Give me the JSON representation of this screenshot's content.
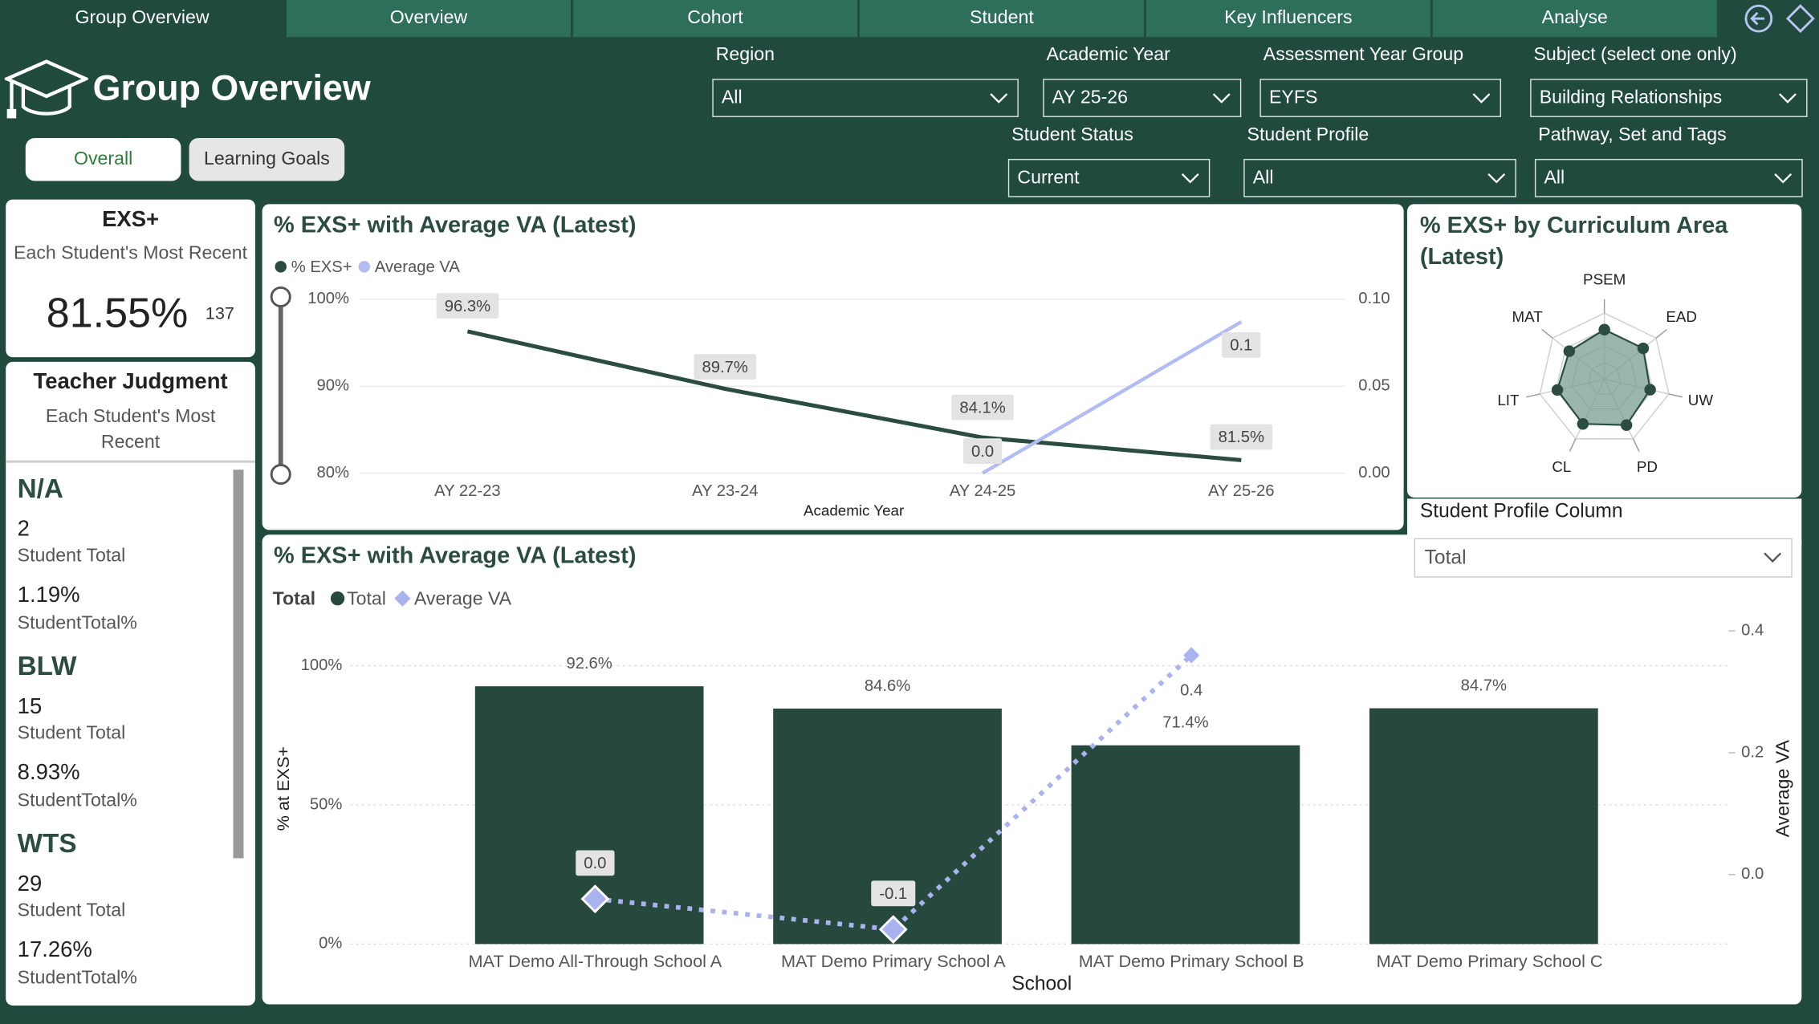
{
  "nav": {
    "tabs": [
      "Group Overview",
      "Overview",
      "Cohort",
      "Student",
      "Key Influencers",
      "Analyse"
    ]
  },
  "header": {
    "title": "Group Overview"
  },
  "toggles": [
    "Overall",
    "Learning Goals"
  ],
  "filters": [
    {
      "label": "Region",
      "value": "All"
    },
    {
      "label": "Academic Year",
      "value": "AY 25-26"
    },
    {
      "label": "Assessment Year Group",
      "value": "EYFS"
    },
    {
      "label": "Subject (select one only)",
      "value": "Building Relationships"
    },
    {
      "label": "Student Status",
      "value": "Current"
    },
    {
      "label": "Student Profile",
      "value": "All"
    },
    {
      "label": "Pathway, Set and Tags",
      "value": "All"
    }
  ],
  "exs_card": {
    "title": "EXS+",
    "subtitle": "Each Student's Most Recent",
    "value": "81.55%",
    "count": "137"
  },
  "judgment": {
    "title": "Teacher Judgment",
    "subtitle": "Each Student's Most Recent",
    "groups": [
      {
        "name": "N/A",
        "total": "2",
        "total_label": "Student Total",
        "percent": "1.19%",
        "percent_label": "StudentTotal%"
      },
      {
        "name": "BLW",
        "total": "15",
        "total_label": "Student Total",
        "percent": "8.93%",
        "percent_label": "StudentTotal%"
      },
      {
        "name": "WTS",
        "total": "29",
        "total_label": "Student Total",
        "percent": "17.26%",
        "percent_label": "StudentTotal%"
      }
    ]
  },
  "line_chart": {
    "type": "line",
    "title": "% EXS+ with Average VA (Latest)",
    "x_label": "Academic Year",
    "categories": [
      "AY 22-23",
      "AY 23-24",
      "AY 24-25",
      "AY 25-26"
    ],
    "series": [
      {
        "name": "% EXS+",
        "color": "#2b4d41",
        "values": [
          96.3,
          89.7,
          84.1,
          81.5
        ],
        "value_labels": [
          "96.3%",
          "89.7%",
          "84.1%",
          "81.5%"
        ]
      },
      {
        "name": "Average VA",
        "color": "#b3bcf2",
        "axis": "y2",
        "values": [
          null,
          null,
          0.0,
          0.087
        ],
        "value_labels": [
          null,
          null,
          "0.0",
          "0.1"
        ]
      }
    ],
    "ylim": [
      80,
      100
    ],
    "yticks": [
      {
        "value": 80,
        "label": "80%"
      },
      {
        "value": 90,
        "label": "90%"
      },
      {
        "value": 100,
        "label": "100%"
      }
    ],
    "y2lim": [
      0,
      0.1
    ],
    "y2ticks": [
      {
        "value": 0,
        "label": "0.00"
      },
      {
        "value": 0.05,
        "label": "0.05"
      },
      {
        "value": 0.1,
        "label": "0.10"
      }
    ],
    "grid": true
  },
  "radar_chart": {
    "type": "radar",
    "title": "% EXS+ by Curriculum Area (Latest)",
    "axes": [
      "PSEM",
      "EAD",
      "UW",
      "PD",
      "CL",
      "LIT",
      "MAT"
    ],
    "values": [
      75,
      75,
      71,
      77,
      75,
      73,
      68
    ],
    "rlim": [
      0,
      100
    ],
    "color": "#2b4d41"
  },
  "profile_slicer": {
    "label": "Student Profile Column",
    "value": "Total"
  },
  "bar_chart": {
    "type": "bar",
    "title": "% EXS+ with Average VA (Latest)",
    "legend_title": "Total",
    "x_label": "School",
    "y_label": "% at EXS+",
    "y2_label": "Average VA",
    "categories": [
      "MAT Demo All-Through School A",
      "MAT Demo Primary School A",
      "MAT Demo Primary School B",
      "MAT Demo Primary School C"
    ],
    "series": [
      {
        "name": "Total",
        "color": "#27483c",
        "values": [
          92.6,
          84.6,
          71.4,
          84.7
        ],
        "value_labels": [
          "92.6%",
          "84.6%",
          "71.4%",
          "84.7%"
        ]
      },
      {
        "name": "Average VA",
        "color": "#a9b3f0",
        "axis": "y2",
        "values": [
          -0.04,
          -0.09,
          0.36,
          null
        ],
        "value_labels": [
          "0.0",
          "-0.1",
          "0.4",
          null
        ]
      }
    ],
    "ylim": [
      0,
      112.5
    ],
    "yticks": [
      {
        "value": 0,
        "label": "0%"
      },
      {
        "value": 50,
        "label": "50%"
      },
      {
        "value": 100,
        "label": "100%"
      }
    ],
    "y2lim": [
      -0.114,
      0.4
    ],
    "y2ticks": [
      {
        "value": 0,
        "label": "0.0"
      },
      {
        "value": 0.2,
        "label": "0.2"
      },
      {
        "value": 0.4,
        "label": "0.4"
      }
    ],
    "grid": true
  }
}
